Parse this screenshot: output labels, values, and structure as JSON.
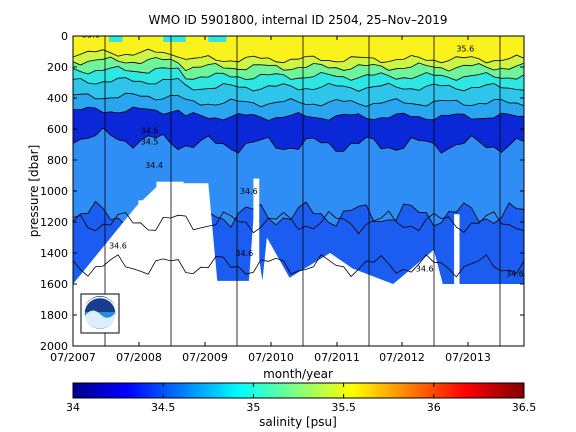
{
  "chart_data": {
    "type": "heatmap",
    "title": "WMO ID 5901800, internal ID 2504, 25–Nov–2019",
    "xlabel": "month/year",
    "ylabel": "pressure [dbar]",
    "colorbar_label": "salinity [psu]",
    "x_ticks": [
      "07/2007",
      "07/2008",
      "07/2009",
      "07/2010",
      "07/2011",
      "07/2012",
      "07/2013"
    ],
    "y_ticks": [
      0,
      200,
      400,
      600,
      800,
      1000,
      1200,
      1400,
      1600,
      1800,
      2000
    ],
    "ylim": [
      2000,
      0
    ],
    "clim": [
      34,
      36.5
    ],
    "colorbar_ticks": [
      34,
      34.5,
      35,
      35.5,
      36,
      36.5
    ],
    "colors": {
      "salinity_34.4": "#0a28d8",
      "salinity_34.5": "#1a5df0",
      "salinity_34.6": "#2f8ef5",
      "salinity_35.0": "#2ee7e2",
      "salinity_35.3": "#6ff49c",
      "salinity_35.5": "#cdf545",
      "salinity_35.6": "#f9f21c",
      "no_data": "#ffffff"
    },
    "contour_labels": [
      {
        "text": "35.6",
        "x": 0.02,
        "y": 10
      },
      {
        "text": "34.6",
        "x": 0.15,
        "y": 630
      },
      {
        "text": "34.5",
        "x": 0.15,
        "y": 700
      },
      {
        "text": "34.4",
        "x": 0.16,
        "y": 850
      },
      {
        "text": "34.6",
        "x": 0.37,
        "y": 1020
      },
      {
        "text": "34.6",
        "x": 0.36,
        "y": 1420
      },
      {
        "text": "34.6",
        "x": 0.76,
        "y": 1520
      },
      {
        "text": "34.6",
        "x": 0.08,
        "y": 1370
      },
      {
        "text": "35.6",
        "x": 0.85,
        "y": 100
      },
      {
        "text": "34.6",
        "x": 0.96,
        "y": 1550
      }
    ],
    "legend_logo": "NOAA"
  }
}
